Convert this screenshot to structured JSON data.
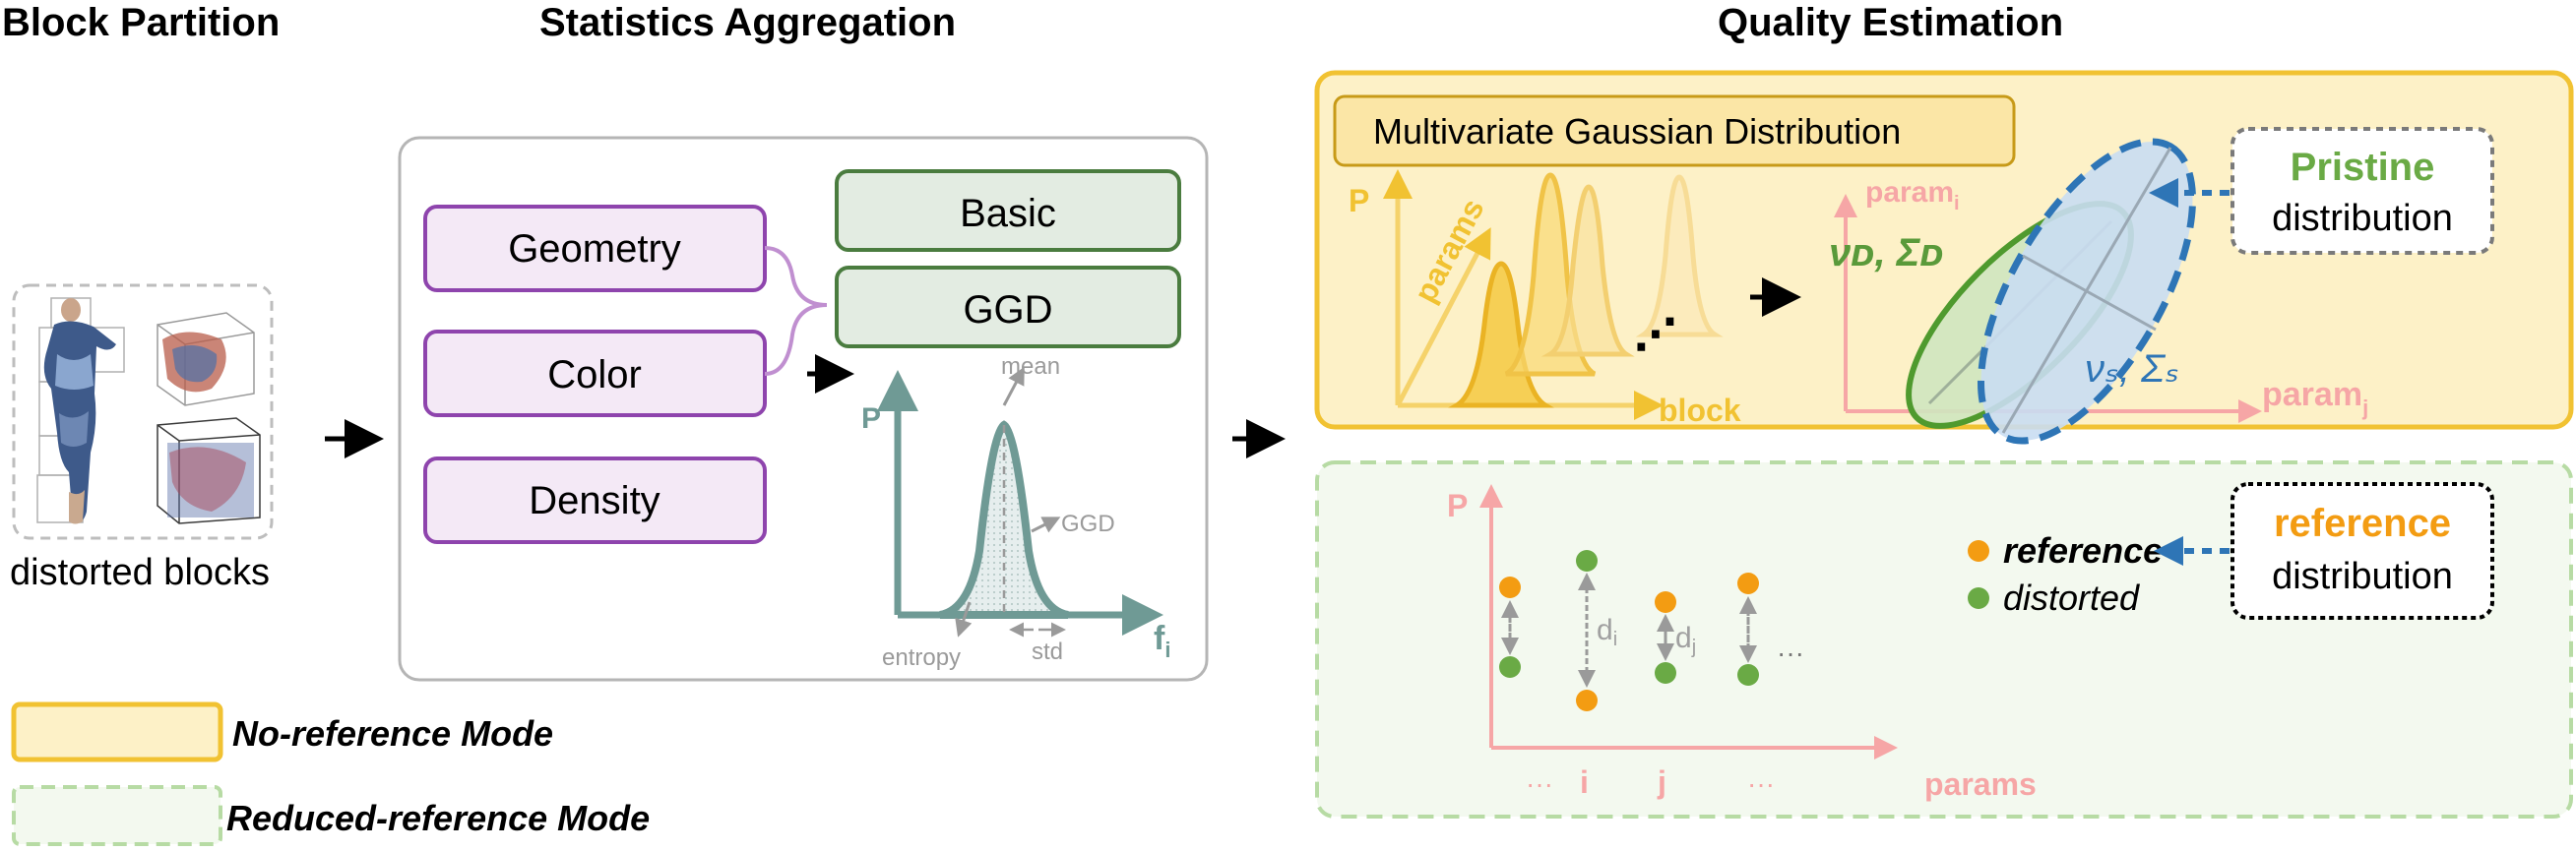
{
  "headers": {
    "block_partition": "Block Partition",
    "statistics_aggregation": "Statistics Aggregation",
    "quality_estimation": "Quality Estimation"
  },
  "block_partition": {
    "caption": "distorted blocks"
  },
  "features": {
    "geometry": "Geometry",
    "color": "Color",
    "density": "Density",
    "basic": "Basic",
    "ggd": "GGD"
  },
  "ggd_plot": {
    "y_axis": "P",
    "x_axis_main": "f",
    "x_axis_sub": "i",
    "mean": "mean",
    "ggd": "GGD",
    "entropy": "entropy",
    "std": "std"
  },
  "no_reference": {
    "mvg_title": "Multivariate Gaussian Distribution",
    "y_axis": "P",
    "params_label": "params",
    "block_label": "block",
    "ellipsis": "⋰",
    "param_i_main": "param",
    "param_i_sub": "i",
    "param_j_main": "param",
    "param_j_sub": "j",
    "nu_d_sigma_d": "νᴅ, Σᴅ",
    "nu_s_sigma_s": "νₛ, Σₛ",
    "pristine_title": "Pristine",
    "pristine_sub": "distribution"
  },
  "reduced_reference": {
    "y_axis": "P",
    "x_axis": "params",
    "tick_dots_left": "···",
    "tick_i": "i",
    "tick_j": "j",
    "tick_dots_right": "···",
    "d_i_main": "d",
    "d_i_sub": "i",
    "d_j_main": "d",
    "d_j_sub": "j",
    "trailing_dots": "···",
    "legend_reference": "reference",
    "legend_distorted": "distorted",
    "ref_title": "reference",
    "ref_sub": "distribution"
  },
  "legend": {
    "no_reference_mode": "No-reference Mode",
    "reduced_reference_mode": "Reduced-reference Mode"
  },
  "colors": {
    "purple": "#8e44ad",
    "feature_fill": "#f4e9f6",
    "green_box_stroke": "#4a7c3f",
    "green_box_fill": "#e3ece2",
    "teal": "#6f9a95",
    "gold": "#f1c232",
    "gold_panel_fill": "#fdf1c7",
    "green_panel_stroke": "#b7dba4",
    "green_panel_fill": "#f3f9ef",
    "pink": "#f6a6a6",
    "orange": "#f39c12",
    "green_dot": "#6aaa45",
    "blue": "#2e75b6",
    "dark_green": "#5a9a3a"
  }
}
